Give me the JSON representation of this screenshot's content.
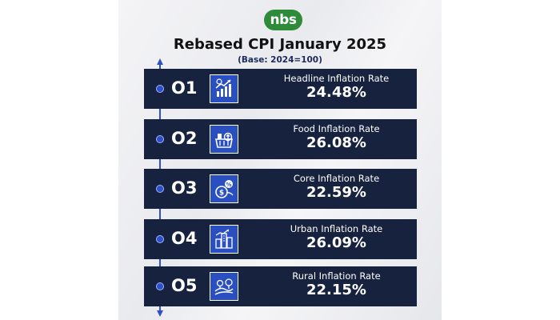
{
  "brand": {
    "logo_text": "nbs",
    "logo_color": "#2e8b3a"
  },
  "header": {
    "title": "Rebased CPI January 2025",
    "subtitle": "(Base: 2024=100)"
  },
  "colors": {
    "row_background": "#17223f",
    "accent_blue": "#2f51c8",
    "icon_background": "#2a4fc0"
  },
  "rows": [
    {
      "number": "O1",
      "label": "Headline Inflation Rate",
      "value": "24.48%",
      "icon": "rising-chart-icon"
    },
    {
      "number": "O2",
      "label": "Food Inflation Rate",
      "value": "26.08%",
      "icon": "food-basket-icon"
    },
    {
      "number": "O3",
      "label": "Core Inflation Rate",
      "value": "22.59%",
      "icon": "money-bag-percent-icon"
    },
    {
      "number": "O4",
      "label": "Urban Inflation Rate",
      "value": "26.09%",
      "icon": "city-buildings-icon"
    },
    {
      "number": "O5",
      "label": "Rural Inflation Rate",
      "value": "22.15%",
      "icon": "rural-landscape-icon"
    }
  ]
}
